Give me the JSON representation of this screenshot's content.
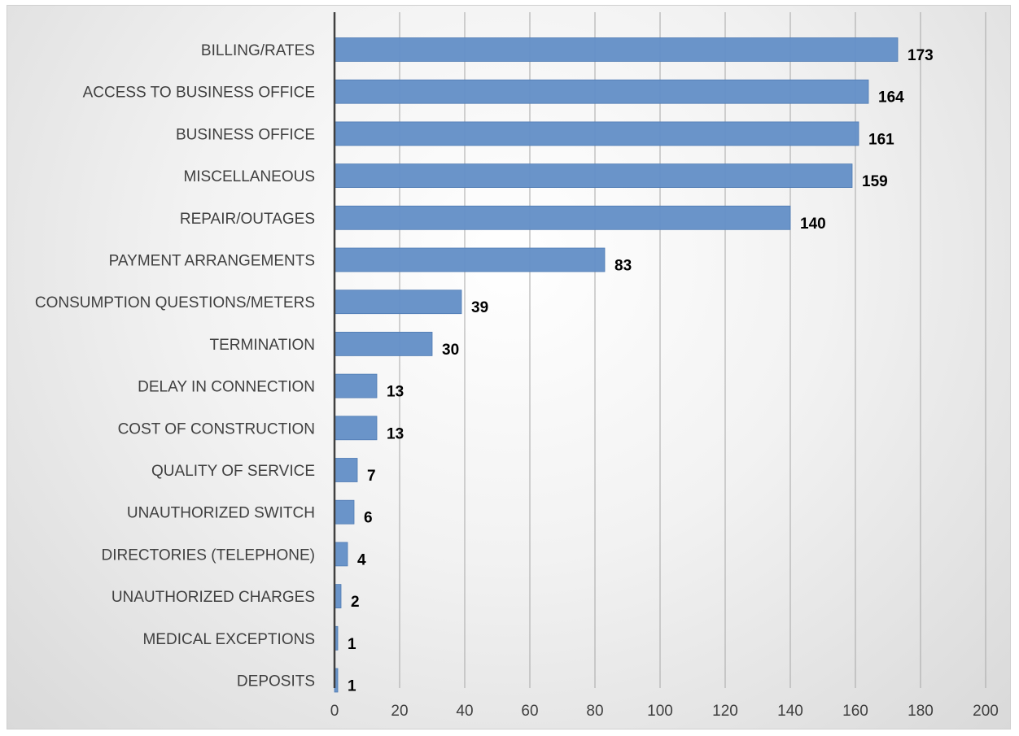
{
  "chart_data": {
    "type": "bar",
    "orientation": "horizontal",
    "title": "",
    "xlabel": "",
    "ylabel": "",
    "categories": [
      "BILLING/RATES",
      "ACCESS TO BUSINESS OFFICE",
      "BUSINESS OFFICE",
      "MISCELLANEOUS",
      "REPAIR/OUTAGES",
      "PAYMENT ARRANGEMENTS",
      "CONSUMPTION QUESTIONS/METERS",
      "TERMINATION",
      "DELAY IN CONNECTION",
      "COST OF CONSTRUCTION",
      "QUALITY OF SERVICE",
      "UNAUTHORIZED SWITCH",
      "DIRECTORIES (TELEPHONE)",
      "UNAUTHORIZED CHARGES",
      "MEDICAL EXCEPTIONS",
      "DEPOSITS"
    ],
    "values": [
      173,
      164,
      161,
      159,
      140,
      83,
      39,
      30,
      13,
      13,
      7,
      6,
      4,
      2,
      1,
      1
    ],
    "data_labels": [
      "173",
      "164",
      "161",
      "159",
      "140",
      "83",
      "39",
      "30",
      "13",
      "13",
      "7",
      "6",
      "4",
      "2",
      "1",
      "1"
    ],
    "xlim": [
      0,
      200
    ],
    "x_ticks": [
      0,
      20,
      40,
      60,
      80,
      100,
      120,
      140,
      160,
      180,
      200
    ],
    "x_tick_labels": [
      "0",
      "20",
      "40",
      "60",
      "80",
      "100",
      "120",
      "140",
      "160",
      "180",
      "200"
    ],
    "grid": "vertical",
    "legend": "none",
    "bar_color": "#6591c7"
  }
}
